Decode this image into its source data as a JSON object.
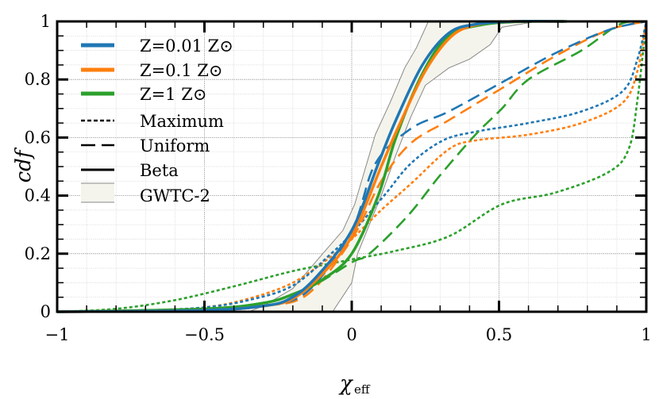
{
  "chart_data": {
    "type": "line",
    "xlabel": "χ",
    "xlabel_sub": "eff",
    "ylabel": "cdf",
    "xlim": [
      -1,
      1
    ],
    "ylim": [
      0,
      1
    ],
    "grid": true,
    "legend_placement": "top-left",
    "x_ticks": [
      -1,
      -0.5,
      0,
      0.5,
      1
    ],
    "x_tick_labels": [
      "−1",
      "−0.5",
      "0",
      "0.5",
      "1"
    ],
    "y_ticks": [
      0,
      0.2,
      0.4,
      0.6,
      0.8,
      1
    ],
    "y_tick_labels": [
      "0",
      "0.2",
      "0.4",
      "0.6",
      "0.8",
      "1"
    ],
    "colors": {
      "Z=0.01": "#1f77b4",
      "Z=0.1": "#ff7f0e",
      "Z=1": "#2ca02c",
      "band_fill": "#f4f4ec",
      "band_edge": "#888888"
    },
    "legend": [
      {
        "label": "Z=0.01 Z⊙",
        "color": "#1f77b4",
        "style": "solid-thick"
      },
      {
        "label": "Z=0.1 Z⊙",
        "color": "#ff7f0e",
        "style": "solid-thick"
      },
      {
        "label": "Z=1 Z⊙",
        "color": "#2ca02c",
        "style": "solid-thick"
      },
      {
        "label": "Maximum",
        "color": "#000000",
        "style": "dotted"
      },
      {
        "label": "Uniform",
        "color": "#000000",
        "style": "dashed"
      },
      {
        "label": "Beta",
        "color": "#000000",
        "style": "solid"
      },
      {
        "label": "GWTC-2",
        "color": "#f4f4ec",
        "style": "band"
      }
    ],
    "series": [
      {
        "metallicity": "Z=0.01",
        "model": "Maximum",
        "color": "#1f77b4",
        "style": "dotted",
        "x": [
          -1,
          -0.7,
          -0.5,
          -0.35,
          -0.2,
          -0.07,
          0,
          0.11,
          0.2,
          0.31,
          0.42,
          0.6,
          0.78,
          0.92,
          0.97,
          1
        ],
        "y": [
          0,
          0.005,
          0.015,
          0.04,
          0.09,
          0.2,
          0.27,
          0.4,
          0.51,
          0.59,
          0.62,
          0.65,
          0.69,
          0.76,
          0.87,
          1
        ]
      },
      {
        "metallicity": "Z=0.1",
        "model": "Maximum",
        "color": "#ff7f0e",
        "style": "dotted",
        "x": [
          -1,
          -0.7,
          -0.5,
          -0.35,
          -0.2,
          -0.07,
          0,
          0.1,
          0.2,
          0.33,
          0.42,
          0.6,
          0.78,
          0.92,
          0.97,
          1
        ],
        "y": [
          0,
          0.005,
          0.015,
          0.045,
          0.1,
          0.19,
          0.25,
          0.35,
          0.44,
          0.56,
          0.59,
          0.61,
          0.65,
          0.72,
          0.83,
          1
        ]
      },
      {
        "metallicity": "Z=1",
        "model": "Maximum",
        "color": "#2ca02c",
        "style": "dotted",
        "x": [
          -1,
          -0.8,
          -0.6,
          -0.39,
          -0.2,
          0,
          0.15,
          0.33,
          0.51,
          0.69,
          0.87,
          0.94,
          0.97,
          1
        ],
        "y": [
          0,
          0.01,
          0.04,
          0.09,
          0.14,
          0.18,
          0.21,
          0.26,
          0.37,
          0.41,
          0.48,
          0.56,
          0.73,
          1
        ]
      },
      {
        "metallicity": "Z=0.01",
        "model": "Uniform",
        "color": "#1f77b4",
        "style": "dashed",
        "x": [
          -1,
          -0.5,
          -0.3,
          -0.15,
          0,
          0.08,
          0.2,
          0.33,
          0.51,
          0.69,
          0.87,
          1
        ],
        "y": [
          0,
          0.005,
          0.02,
          0.07,
          0.28,
          0.51,
          0.63,
          0.69,
          0.79,
          0.89,
          0.97,
          1
        ]
      },
      {
        "metallicity": "Z=0.1",
        "model": "Uniform",
        "color": "#ff7f0e",
        "style": "dashed",
        "x": [
          -1,
          -0.5,
          -0.3,
          -0.15,
          0,
          0.1,
          0.2,
          0.33,
          0.51,
          0.69,
          0.87,
          1
        ],
        "y": [
          0,
          0.005,
          0.02,
          0.06,
          0.25,
          0.45,
          0.58,
          0.66,
          0.77,
          0.88,
          0.97,
          1
        ]
      },
      {
        "metallicity": "Z=1",
        "model": "Uniform",
        "color": "#2ca02c",
        "style": "dashed",
        "x": [
          -1,
          -0.5,
          -0.3,
          -0.15,
          0,
          0.06,
          0.19,
          0.3,
          0.42,
          0.51,
          0.6,
          0.78,
          0.91,
          1
        ],
        "y": [
          0,
          0.005,
          0.03,
          0.08,
          0.17,
          0.2,
          0.33,
          0.47,
          0.61,
          0.7,
          0.8,
          0.9,
          0.99,
          1
        ]
      },
      {
        "metallicity": "Z=0.01",
        "model": "Beta",
        "color": "#1f77b4",
        "style": "solid",
        "x": [
          -1,
          -0.5,
          -0.3,
          -0.21,
          -0.12,
          0,
          0.09,
          0.15,
          0.24,
          0.33,
          0.42,
          0.55,
          0.72
        ],
        "y": [
          0,
          0.005,
          0.02,
          0.045,
          0.12,
          0.28,
          0.51,
          0.66,
          0.85,
          0.96,
          0.99,
          1,
          1
        ]
      },
      {
        "metallicity": "Z=0.1",
        "model": "Beta",
        "color": "#ff7f0e",
        "style": "solid",
        "x": [
          -1,
          -0.5,
          -0.3,
          -0.2,
          -0.1,
          0,
          0.1,
          0.16,
          0.25,
          0.34,
          0.43,
          0.55,
          0.72
        ],
        "y": [
          0,
          0.005,
          0.02,
          0.045,
          0.13,
          0.26,
          0.5,
          0.64,
          0.83,
          0.95,
          0.99,
          1,
          1
        ]
      },
      {
        "metallicity": "Z=1",
        "model": "Beta",
        "color": "#2ca02c",
        "style": "solid",
        "x": [
          -1,
          -0.5,
          -0.3,
          -0.2,
          -0.1,
          0,
          0.09,
          0.15,
          0.24,
          0.33,
          0.45,
          0.6,
          0.73
        ],
        "y": [
          0,
          0.01,
          0.03,
          0.06,
          0.11,
          0.2,
          0.4,
          0.6,
          0.82,
          0.95,
          0.99,
          1,
          1
        ]
      }
    ],
    "band": {
      "label": "GWTC-2",
      "upper": {
        "x": [
          -0.35,
          -0.3,
          -0.2,
          -0.09,
          -0.03,
          0.01,
          0.08,
          0.13,
          0.18,
          0.22,
          0.26,
          0.63
        ],
        "y": [
          0,
          0.02,
          0.08,
          0.21,
          0.28,
          0.37,
          0.61,
          0.72,
          0.84,
          0.91,
          1,
          1
        ]
      },
      "lower": {
        "x": [
          -0.065,
          0,
          0.02,
          0.1,
          0.15,
          0.2,
          0.25,
          0.33,
          0.4,
          0.47,
          0.51,
          0.63
        ],
        "y": [
          0,
          0.1,
          0.2,
          0.4,
          0.54,
          0.67,
          0.78,
          0.84,
          0.87,
          0.92,
          0.98,
          1
        ]
      }
    }
  }
}
